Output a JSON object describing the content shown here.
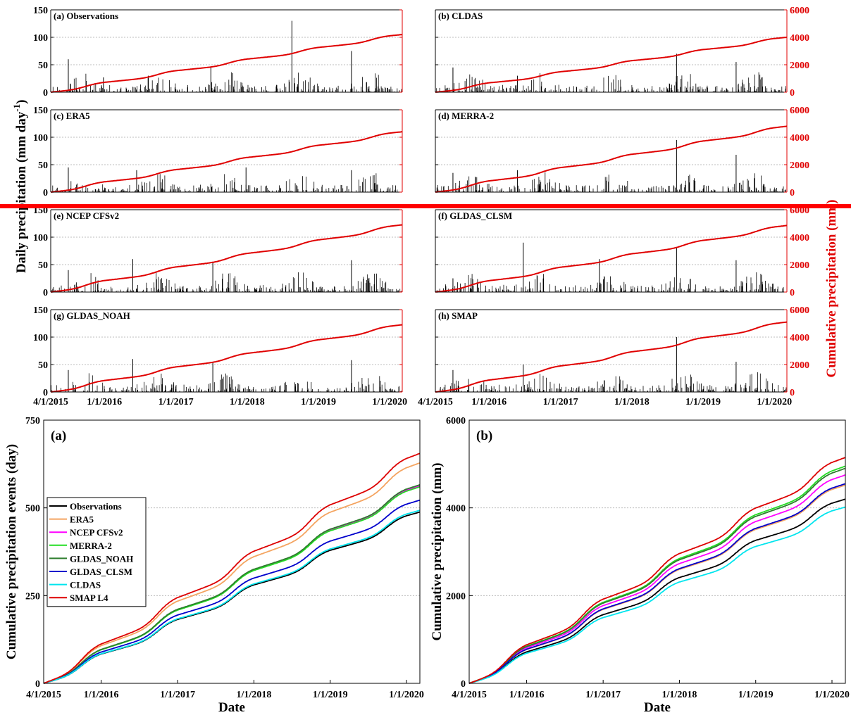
{
  "chart_data": [
    {
      "type": "bar+line",
      "group": "top-panels",
      "ylabel_left": "Daily precipitation (mm day",
      "ylabel_left_sup": "-1",
      "ylabel_left_close": ")",
      "ylabel_right": "Cumulative precipitation (mm)",
      "ylim_left": [
        0,
        150
      ],
      "ylim_right": [
        0,
        6000
      ],
      "yticks_left": [
        "0",
        "50",
        "100",
        "150"
      ],
      "yticks_right": [
        "0",
        "2000",
        "4000",
        "6000"
      ],
      "xticks": [
        "4/1/2015",
        "1/1/2016",
        "1/1/2017",
        "1/1/2018",
        "1/1/2019",
        "1/1/2020"
      ],
      "colors": {
        "daily": "#000000",
        "cumulative": "#e00000"
      },
      "panels": [
        {
          "title": "(a) Observations",
          "final_cumulative": 4200,
          "daily_peaks": [
            [
              90,
              60
            ],
            [
              270,
              27
            ],
            [
              500,
              30
            ],
            [
              820,
              45
            ],
            [
              1235,
              130
            ],
            [
              1540,
              75
            ]
          ]
        },
        {
          "title": "(b) CLDAS",
          "final_cumulative": 4000,
          "daily_peaks": [
            [
              90,
              45
            ],
            [
              420,
              30
            ],
            [
              1235,
              70
            ],
            [
              1540,
              55
            ]
          ]
        },
        {
          "title": "(c) ERA5",
          "final_cumulative": 4400,
          "daily_peaks": [
            [
              90,
              45
            ],
            [
              440,
              40
            ],
            [
              1000,
              45
            ],
            [
              1540,
              40
            ]
          ]
        },
        {
          "title": "(d) MERRA-2",
          "final_cumulative": 4800,
          "daily_peaks": [
            [
              90,
              35
            ],
            [
              420,
              40
            ],
            [
              1235,
              95
            ],
            [
              1540,
              68
            ]
          ]
        },
        {
          "title": "(e) NCEP CFSv2",
          "final_cumulative": 4900,
          "daily_peaks": [
            [
              90,
              40
            ],
            [
              420,
              60
            ],
            [
              830,
              55
            ],
            [
              1540,
              58
            ]
          ]
        },
        {
          "title": "(f) GLDAS_CLSM",
          "final_cumulative": 4850,
          "daily_peaks": [
            [
              90,
              25
            ],
            [
              450,
              90
            ],
            [
              840,
              60
            ],
            [
              1235,
              80
            ],
            [
              1540,
              58
            ]
          ]
        },
        {
          "title": "(g) GLDAS_NOAH",
          "final_cumulative": 4900,
          "daily_peaks": [
            [
              90,
              40
            ],
            [
              420,
              60
            ],
            [
              830,
              55
            ],
            [
              1540,
              58
            ]
          ]
        },
        {
          "title": "(h) SMAP",
          "final_cumulative": 5100,
          "daily_peaks": [
            [
              90,
              40
            ],
            [
              450,
              50
            ],
            [
              1235,
              100
            ],
            [
              1540,
              55
            ]
          ]
        }
      ]
    },
    {
      "type": "line",
      "panel_label": "(a)",
      "xlabel": "Date",
      "ylabel": "Cumulative precipitation events (day)",
      "ylim": [
        0,
        750
      ],
      "yticks": [
        "0",
        "250",
        "500",
        "750"
      ],
      "xticks": [
        "4/1/2015",
        "1/1/2016",
        "1/1/2017",
        "1/1/2018",
        "1/1/2019",
        "1/1/2020"
      ],
      "legend_location": "left",
      "series": [
        {
          "name": "Observations",
          "color": "#000000",
          "final": 488
        },
        {
          "name": "ERA5",
          "color": "#f4a460",
          "final": 628
        },
        {
          "name": "NCEP CFSv2",
          "color": "#ff00ff",
          "final": 563
        },
        {
          "name": "MERRA-2",
          "color": "#22dd22",
          "final": 560
        },
        {
          "name": "GLDAS_NOAH",
          "color": "#2e7d2e",
          "final": 566
        },
        {
          "name": "GLDAS_CLSM",
          "color": "#0000cc",
          "final": 522
        },
        {
          "name": "CLDAS",
          "color": "#00e5ee",
          "final": 493
        },
        {
          "name": "SMAP L4",
          "color": "#dd0000",
          "final": 655
        }
      ]
    },
    {
      "type": "line",
      "panel_label": "(b)",
      "xlabel": "Date",
      "ylabel": "Cumulative precipitation (mm)",
      "ylim": [
        0,
        6000
      ],
      "yticks": [
        "0",
        "2000",
        "4000",
        "6000"
      ],
      "xticks": [
        "4/1/2015",
        "1/1/2016",
        "1/1/2017",
        "1/1/2018",
        "1/1/2019",
        "1/1/2020"
      ],
      "series": [
        {
          "name": "Observations",
          "color": "#000000",
          "final": 4200
        },
        {
          "name": "ERA5",
          "color": "#f4a460",
          "final": 4520
        },
        {
          "name": "NCEP CFSv2",
          "color": "#ff00ff",
          "final": 4750
        },
        {
          "name": "MERRA-2",
          "color": "#22dd22",
          "final": 4950
        },
        {
          "name": "GLDAS_NOAH",
          "color": "#2e7d2e",
          "final": 4900
        },
        {
          "name": "GLDAS_CLSM",
          "color": "#0000cc",
          "final": 4550
        },
        {
          "name": "CLDAS",
          "color": "#00e5ee",
          "final": 4020
        },
        {
          "name": "SMAP L4",
          "color": "#dd0000",
          "final": 5150
        }
      ]
    }
  ],
  "divider": {
    "color": "#ff0000"
  }
}
